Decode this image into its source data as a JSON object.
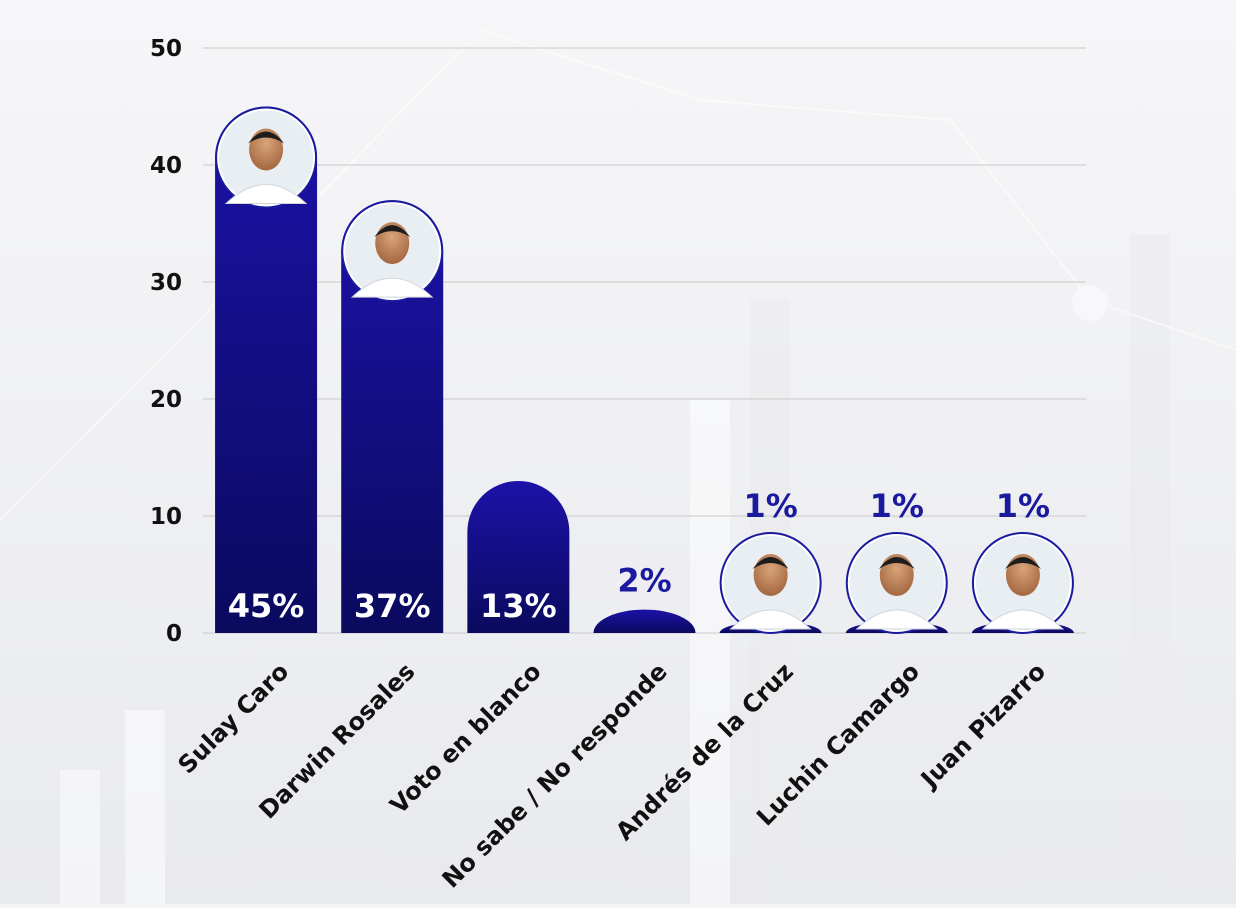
{
  "chart_data": {
    "type": "bar",
    "categories": [
      "Sulay Caro",
      "Darwin Rosales",
      "Voto en blanco",
      "No sabe / No responde",
      "Andrés de la Cruz",
      "Luchin Camargo",
      "Juan Pizarro"
    ],
    "values": [
      45,
      37,
      13,
      2,
      1,
      1,
      1
    ],
    "value_labels": [
      "45%",
      "37%",
      "13%",
      "2%",
      "1%",
      "1%",
      "1%"
    ],
    "has_photo": [
      true,
      true,
      false,
      false,
      true,
      true,
      true
    ],
    "y_ticks": [
      "0",
      "10",
      "20",
      "30",
      "40",
      "50"
    ],
    "ylim": [
      0,
      50
    ],
    "grid": true,
    "title": "",
    "xlabel": "",
    "ylabel": ""
  },
  "colors": {
    "bar_top": "#1c12a8",
    "bar_bottom": "#0a0a5e",
    "value_outside": "#1a1a9e",
    "value_inside": "#ffffff",
    "tick_text": "#111111",
    "grid": "#c9c9c9",
    "photo_border": "#1a1a9e"
  }
}
